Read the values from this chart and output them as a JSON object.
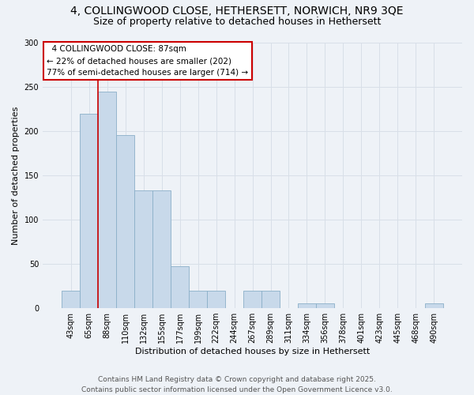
{
  "title_line1": "4, COLLINGWOOD CLOSE, HETHERSETT, NORWICH, NR9 3QE",
  "title_line2": "Size of property relative to detached houses in Hethersett",
  "xlabel": "Distribution of detached houses by size in Hethersett",
  "ylabel": "Number of detached properties",
  "categories": [
    "43sqm",
    "65sqm",
    "88sqm",
    "110sqm",
    "132sqm",
    "155sqm",
    "177sqm",
    "199sqm",
    "222sqm",
    "244sqm",
    "267sqm",
    "289sqm",
    "311sqm",
    "334sqm",
    "356sqm",
    "378sqm",
    "401sqm",
    "423sqm",
    "445sqm",
    "468sqm",
    "490sqm"
  ],
  "values": [
    20,
    220,
    245,
    196,
    133,
    133,
    47,
    20,
    20,
    0,
    20,
    20,
    0,
    5,
    5,
    0,
    0,
    0,
    0,
    0,
    5
  ],
  "bar_color": "#c8d9ea",
  "bar_edge_color": "#8aafc8",
  "vline_color": "#cc0000",
  "annotation_box_edge_color": "#cc0000",
  "background_color": "#eef2f7",
  "plot_bg_color": "#eef2f7",
  "grid_color": "#d8dfe8",
  "ylim": [
    0,
    300
  ],
  "yticks": [
    0,
    50,
    100,
    150,
    200,
    250,
    300
  ],
  "property_label": "4 COLLINGWOOD CLOSE: 87sqm",
  "pct_smaller": "22% of detached houses are smaller (202)",
  "pct_larger": "77% of semi-detached houses are larger (714)",
  "footer_line1": "Contains HM Land Registry data © Crown copyright and database right 2025.",
  "footer_line2": "Contains public sector information licensed under the Open Government Licence v3.0.",
  "title_fontsize": 10,
  "subtitle_fontsize": 9,
  "axis_label_fontsize": 8,
  "tick_fontsize": 7,
  "annotation_fontsize": 7.5,
  "footer_fontsize": 6.5
}
